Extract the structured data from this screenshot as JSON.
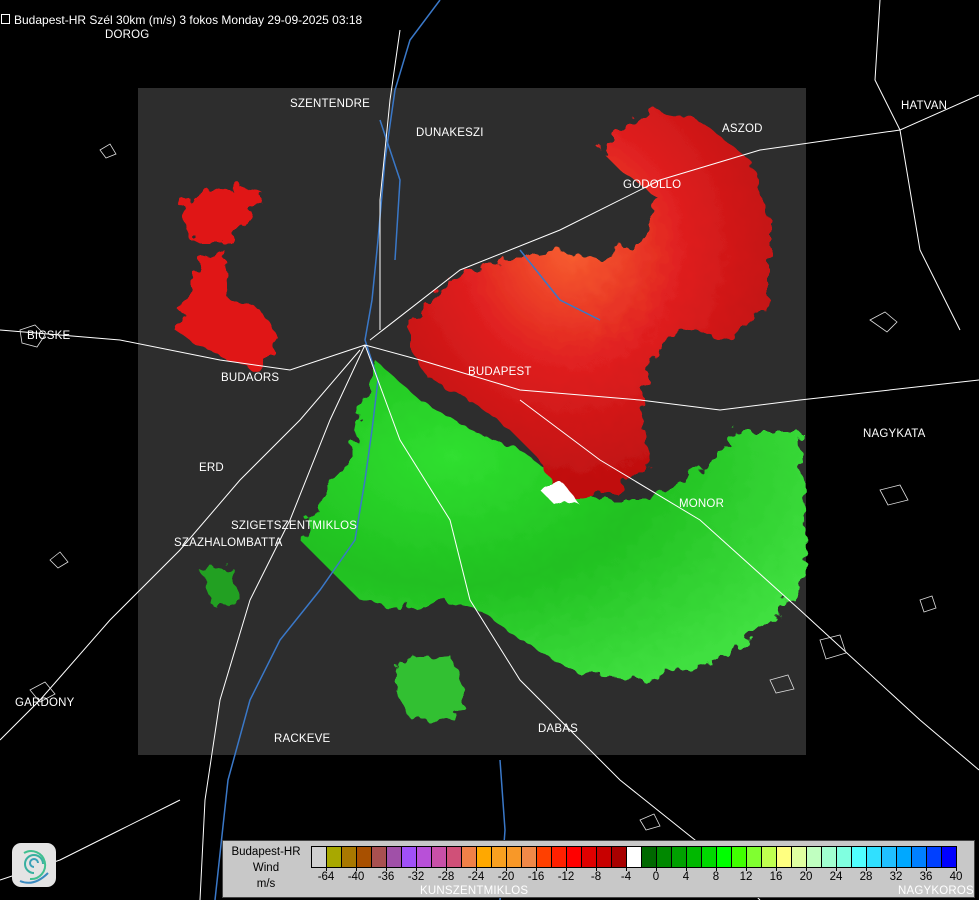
{
  "header": {
    "title": "Budapest-HR Szél 30km (m/s) 3 fokos Monday 29-09-2025 03:18",
    "icon": "menu-icon"
  },
  "places": [
    {
      "name": "DOROG"
    },
    {
      "name": "SZENTENDRE"
    },
    {
      "name": "DUNAKESZI"
    },
    {
      "name": "ASZOD"
    },
    {
      "name": "HATVAN"
    },
    {
      "name": "GODOLLO"
    },
    {
      "name": "BICSKE"
    },
    {
      "name": "BUDAORS"
    },
    {
      "name": "BUDAPEST"
    },
    {
      "name": "NAGYKATA"
    },
    {
      "name": "ERD"
    },
    {
      "name": "MONOR"
    },
    {
      "name": "SZIGETSZENTMIKLOS"
    },
    {
      "name": "SZAZHALOMBATTA"
    },
    {
      "name": "GARDONY"
    },
    {
      "name": "RACKEVE"
    },
    {
      "name": "DABAS"
    },
    {
      "name": "KUNSZENTMIKLOS"
    },
    {
      "name": "NAGYKOROS"
    }
  ],
  "legend": {
    "station": "Budapest-HR",
    "quantity": "Wind",
    "unit": "m/s",
    "colors": [
      "#d0d0d0",
      "#a8a800",
      "#a87800",
      "#a85000",
      "#a85050",
      "#a050a8",
      "#a050f8",
      "#b850d8",
      "#c850a8",
      "#d05078",
      "#f08048",
      "#ffa800",
      "#f8a020",
      "#f89828",
      "#f08848",
      "#ff4000",
      "#ff2000",
      "#ff0000",
      "#e00000",
      "#c80000",
      "#a80000",
      "#ffffff",
      "#006800",
      "#008800",
      "#00a000",
      "#00b800",
      "#00d800",
      "#00ff00",
      "#40ff00",
      "#80ff30",
      "#c0ff50",
      "#ffff80",
      "#e0ffa0",
      "#c0ffc0",
      "#a0ffd0",
      "#80ffe0",
      "#50ffff",
      "#30e0ff",
      "#20c0ff",
      "#00a8ff",
      "#0080ff",
      "#0040ff",
      "#0000ff"
    ],
    "ticks": [
      "-64",
      "-40",
      "-36",
      "-32",
      "-28",
      "-24",
      "-20",
      "-16",
      "-12",
      "-8",
      "-4",
      "0",
      "4",
      "8",
      "12",
      "16",
      "20",
      "24",
      "28",
      "32",
      "36",
      "40"
    ]
  },
  "colors": {
    "background": "#000000",
    "radar_area": "#2d2d2d",
    "roads": "#ffffff",
    "rivers": "#3a78c8",
    "approaching": "#ff2000",
    "receding": "#00d800"
  },
  "logo": {
    "icon": "swirl-logo-icon"
  }
}
